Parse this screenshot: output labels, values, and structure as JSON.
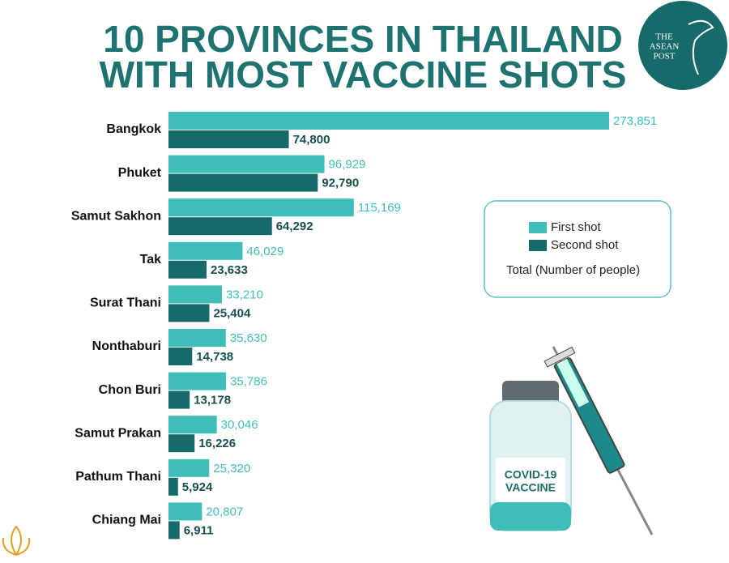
{
  "chart_data": {
    "type": "bar",
    "orientation": "horizontal",
    "title": [
      "10 PROVINCES IN THAILAND",
      "WITH MOST VACCINE SHOTS"
    ],
    "categories": [
      "Bangkok",
      "Phuket",
      "Samut Sakhon",
      "Tak",
      "Surat Thani",
      "Nonthaburi",
      "Chon Buri",
      "Samut Prakan",
      "Pathum Thani",
      "Chiang Mai"
    ],
    "series": [
      {
        "name": "First shot",
        "color": "#3fbdb9",
        "values": [
          273851,
          96929,
          115169,
          46029,
          33210,
          35630,
          35786,
          30046,
          25320,
          20807
        ],
        "value_labels": [
          "273,851",
          "96,929",
          "115,169",
          "46,029",
          "33,210",
          "35,630",
          "35,786",
          "30,046",
          "25,320",
          "20,807"
        ]
      },
      {
        "name": "Second shot",
        "color": "#176a6a",
        "values": [
          74800,
          92790,
          64292,
          23633,
          25404,
          14738,
          13178,
          16226,
          5924,
          6911
        ],
        "value_labels": [
          "74,800",
          "92,790",
          "64,292",
          "23,633",
          "25,404",
          "14,738",
          "13,178",
          "16,226",
          "5,924",
          "6,911"
        ]
      }
    ],
    "legend_note": "Total (Number of people)",
    "logo": [
      "THE",
      "ASEAN",
      "POST"
    ],
    "illustration_label": [
      "COVID-19",
      "VACCINE"
    ]
  }
}
